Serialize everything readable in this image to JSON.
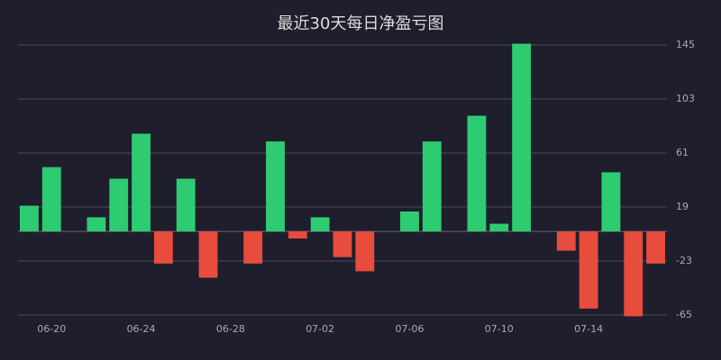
{
  "chart_data": {
    "type": "bar",
    "title": "最近30天每日净盈亏图",
    "categories": [
      null,
      "06-20",
      null,
      null,
      null,
      "06-24",
      null,
      null,
      null,
      "06-28",
      null,
      null,
      null,
      "07-02",
      null,
      null,
      null,
      "07-06",
      null,
      null,
      null,
      "07-10",
      null,
      null,
      null,
      "07-14",
      null,
      null,
      null
    ],
    "values": [
      20,
      50,
      0,
      11,
      41,
      76,
      -25,
      41,
      -36,
      0,
      -25,
      70,
      -5.5,
      11,
      -20,
      -31,
      0,
      15.5,
      70,
      0,
      90,
      6,
      146,
      0,
      -15,
      -60,
      46,
      -66,
      -25
    ],
    "positive_color": "#2ecc71",
    "negative_color": "#e74c3c",
    "ylim": [
      -65,
      145
    ],
    "yticks": [
      -65,
      -23,
      19,
      61,
      103,
      145
    ],
    "grid": true
  }
}
